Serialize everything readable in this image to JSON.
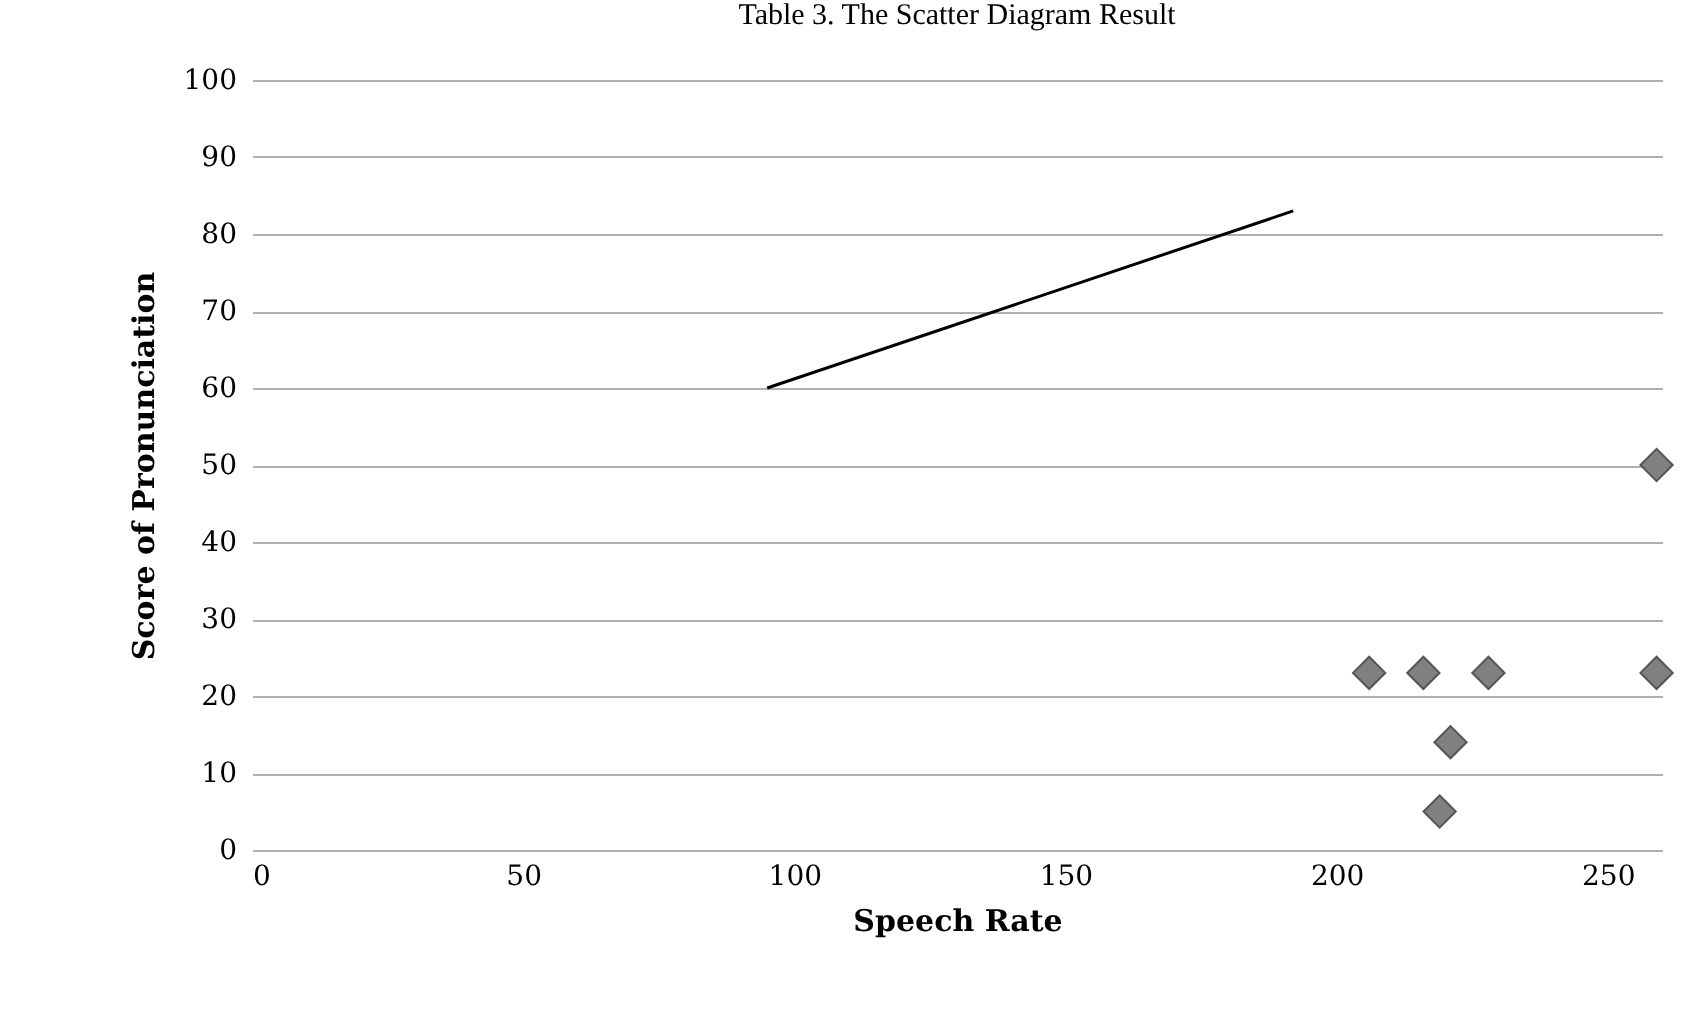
{
  "chart_data": {
    "type": "scatter",
    "title": "Table 3. The Scatter Diagram Result",
    "xlabel": "Speech Rate",
    "ylabel": "Score of Pronunciation",
    "series": [
      {
        "color": "#808080",
        "marker": "diamond",
        "x": [
          206,
          216,
          228,
          221,
          219,
          259,
          259
        ],
        "values": [
          23,
          23,
          23,
          14,
          5,
          50,
          23
        ]
      },
      {
        "type": "line",
        "color": "#000000",
        "marker": "none",
        "x": [
          95,
          192
        ],
        "values": [
          60,
          83
        ]
      }
    ],
    "xlim": [
      0,
      260
    ],
    "xticks": [
      0,
      50,
      100,
      150,
      200,
      250
    ],
    "ylim": [
      0,
      100
    ],
    "yticks": [
      0,
      10,
      20,
      30,
      40,
      50,
      60,
      70,
      80,
      90,
      100
    ],
    "grid": "y"
  }
}
